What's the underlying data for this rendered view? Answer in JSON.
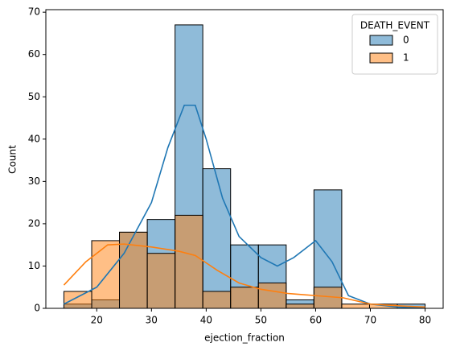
{
  "chart_data": {
    "type": "histogram",
    "x_label": "ejection_fraction",
    "y_label": "Count",
    "legend_title": "DEATH_EVENT",
    "legend": "upper right",
    "bins": [
      14,
      19.08,
      24.15,
      29.23,
      34.31,
      39.38,
      44.46,
      49.54,
      54.62,
      59.69,
      64.77,
      69.85,
      74.92,
      80
    ],
    "series": [
      {
        "name": "0",
        "color": "#1f77b4",
        "values": [
          1,
          2,
          18,
          21,
          67,
          33,
          15,
          15,
          2,
          28,
          0,
          0,
          1
        ],
        "kde_x": [
          14,
          20,
          25,
          30,
          33,
          36,
          38,
          40,
          43,
          46,
          50,
          53,
          56,
          60,
          63,
          66,
          70,
          75,
          80
        ],
        "kde": [
          1,
          5,
          13,
          25,
          38,
          48,
          48,
          40,
          26,
          17,
          12,
          10,
          12,
          16,
          11,
          3,
          1,
          0.3,
          0.1
        ]
      },
      {
        "name": "1",
        "color": "#ff7f0e",
        "values": [
          4,
          16,
          18,
          13,
          22,
          4,
          5,
          6,
          1,
          5,
          1,
          1,
          0
        ],
        "kde_x": [
          14,
          18,
          22,
          25,
          30,
          35,
          38,
          42,
          46,
          50,
          55,
          60,
          65,
          70,
          75,
          80
        ],
        "kde": [
          5.5,
          11,
          15,
          15.2,
          14.5,
          13.5,
          12.5,
          9,
          6,
          4.5,
          3.5,
          3,
          2.5,
          1,
          0.6,
          0.3
        ]
      }
    ],
    "xlim": [
      10.7,
      83.3
    ],
    "ylim": [
      0,
      70.6
    ],
    "xticks": [
      20,
      30,
      40,
      50,
      60,
      70,
      80
    ],
    "yticks": [
      0,
      10,
      20,
      30,
      40,
      50,
      60,
      70
    ]
  }
}
